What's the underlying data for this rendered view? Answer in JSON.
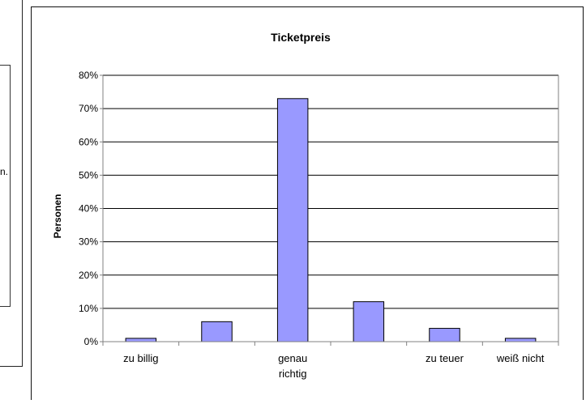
{
  "left_panel": {
    "fragment": "n."
  },
  "chart_data": {
    "type": "bar",
    "title": "Ticketpreis",
    "ylabel": "Personen",
    "xlabel": "",
    "categories": [
      "zu billig",
      "",
      "genau richtig",
      "",
      "zu teuer",
      "weiß nicht"
    ],
    "category_lines": [
      [
        "zu billig"
      ],
      [
        ""
      ],
      [
        "genau",
        "richtig"
      ],
      [
        ""
      ],
      [
        "zu teuer"
      ],
      [
        "weiß nicht"
      ]
    ],
    "values": [
      1,
      6,
      73,
      12,
      4,
      1
    ],
    "ylim": [
      0,
      80
    ],
    "yticks": [
      0,
      10,
      20,
      30,
      40,
      50,
      60,
      70,
      80
    ],
    "ytick_labels": [
      "0%",
      "10%",
      "20%",
      "30%",
      "40%",
      "50%",
      "60%",
      "70%",
      "80%"
    ],
    "grid": true,
    "legend": "none",
    "colors": {
      "bar_fill": "#9999ff",
      "bar_stroke": "#000000",
      "grid": "#000000",
      "axis": "#808080"
    }
  }
}
